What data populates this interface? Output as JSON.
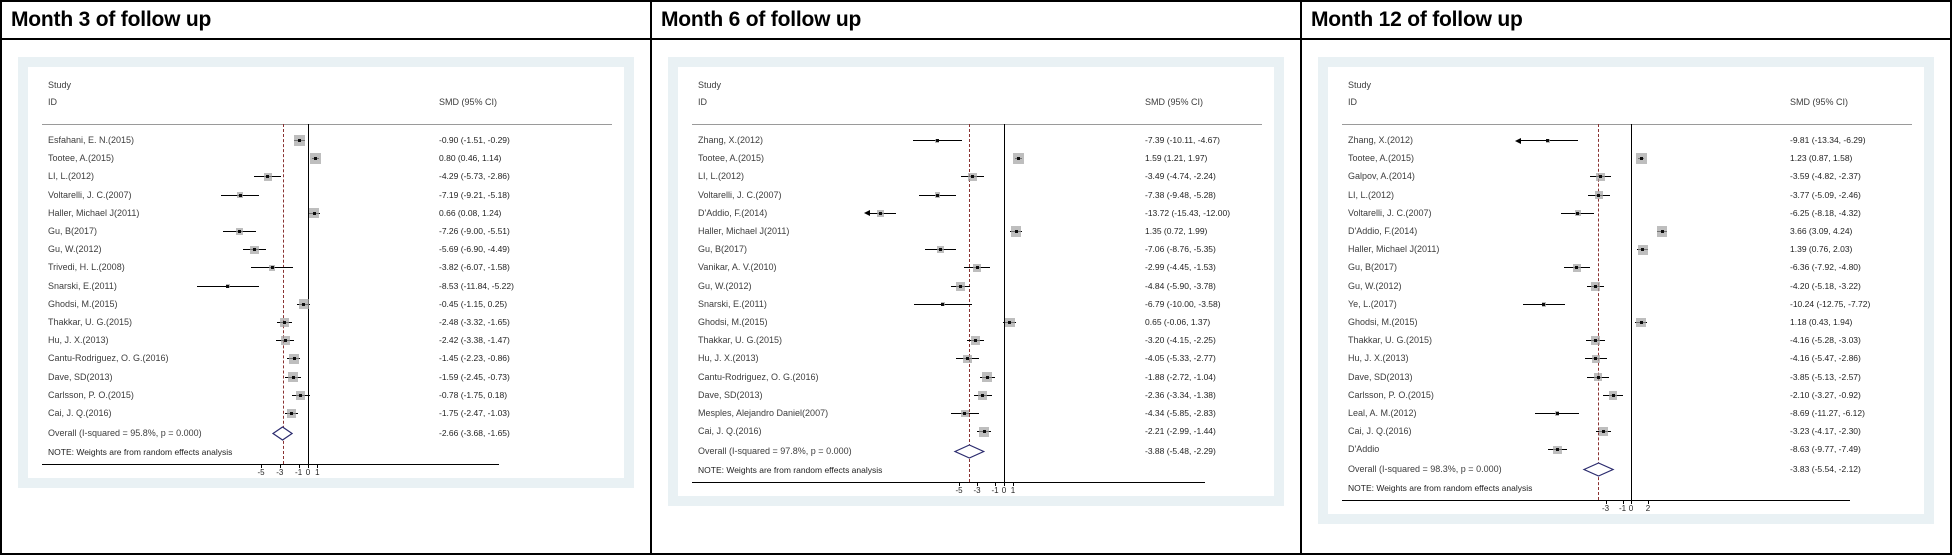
{
  "chart_data": [
    {
      "type": "forest",
      "title": "Month 3 of follow up",
      "col_headers": {
        "study": [
          "Study",
          "ID"
        ],
        "effect": "SMD (95% CI)"
      },
      "axis_ticks": [
        -5,
        -3,
        -1,
        0,
        1
      ],
      "xlim": [
        -12.4,
        1.8
      ],
      "null_line_x": 0,
      "studies": [
        {
          "label": "Esfahani, E. N.(2015)",
          "smd": -0.9,
          "lo": -1.51,
          "hi": -0.29,
          "ci_text": "-0.90 (-1.51, -0.29)"
        },
        {
          "label": "Tootee, A.(2015)",
          "smd": 0.8,
          "lo": 0.46,
          "hi": 1.14,
          "ci_text": "0.80 (0.46, 1.14)"
        },
        {
          "label": "LI, L.(2012)",
          "smd": -4.29,
          "lo": -5.73,
          "hi": -2.86,
          "ci_text": "-4.29 (-5.73, -2.86)"
        },
        {
          "label": "Voltarelli, J. C.(2007)",
          "smd": -7.19,
          "lo": -9.21,
          "hi": -5.18,
          "ci_text": "-7.19 (-9.21, -5.18)"
        },
        {
          "label": "Haller, Michael J(2011)",
          "smd": 0.66,
          "lo": 0.08,
          "hi": 1.24,
          "ci_text": "0.66 (0.08, 1.24)"
        },
        {
          "label": "Gu, B(2017)",
          "smd": -7.26,
          "lo": -9.0,
          "hi": -5.51,
          "ci_text": "-7.26 (-9.00, -5.51)"
        },
        {
          "label": "Gu, W.(2012)",
          "smd": -5.69,
          "lo": -6.9,
          "hi": -4.49,
          "ci_text": "-5.69 (-6.90, -4.49)"
        },
        {
          "label": "Trivedi, H. L.(2008)",
          "smd": -3.82,
          "lo": -6.07,
          "hi": -1.58,
          "ci_text": "-3.82 (-6.07, -1.58)"
        },
        {
          "label": "Snarski, E.(2011)",
          "smd": -8.53,
          "lo": -11.84,
          "hi": -5.22,
          "ci_text": "-8.53 (-11.84, -5.22)"
        },
        {
          "label": "Ghodsi, M.(2015)",
          "smd": -0.45,
          "lo": -1.15,
          "hi": 0.25,
          "ci_text": "-0.45 (-1.15, 0.25)"
        },
        {
          "label": "Thakkar, U. G.(2015)",
          "smd": -2.48,
          "lo": -3.32,
          "hi": -1.65,
          "ci_text": "-2.48 (-3.32, -1.65)"
        },
        {
          "label": "Hu, J. X.(2013)",
          "smd": -2.42,
          "lo": -3.38,
          "hi": -1.47,
          "ci_text": "-2.42 (-3.38, -1.47)"
        },
        {
          "label": "Cantu-Rodriguez, O. G.(2016)",
          "smd": -1.45,
          "lo": -2.23,
          "hi": -0.86,
          "ci_text": "-1.45 (-2.23, -0.86)"
        },
        {
          "label": "Dave, SD(2013)",
          "smd": -1.59,
          "lo": -2.45,
          "hi": -0.73,
          "ci_text": "-1.59 (-2.45, -0.73)"
        },
        {
          "label": "Carlsson, P. O.(2015)",
          "smd": -0.78,
          "lo": -1.75,
          "hi": 0.18,
          "ci_text": "-0.78 (-1.75, 0.18)"
        },
        {
          "label": "Cai, J. Q.(2016)",
          "smd": -1.75,
          "lo": -2.47,
          "hi": -1.03,
          "ci_text": "-1.75 (-2.47, -1.03)"
        }
      ],
      "overall": {
        "label": "Overall  (I-squared = 95.8%, p = 0.000)",
        "smd": -2.66,
        "lo": -3.68,
        "hi": -1.65,
        "ci_text": "-2.66 (-3.68, -1.65)"
      },
      "note": "NOTE: Weights are from random effects analysis"
    },
    {
      "type": "forest",
      "title": "Month 6 of follow up",
      "col_headers": {
        "study": [
          "Study",
          "ID"
        ],
        "effect": "SMD (95% CI)"
      },
      "axis_ticks": [
        -5,
        -3,
        -1,
        0,
        1
      ],
      "xlim": [
        -14.9,
        2.3
      ],
      "null_line_x": 0,
      "studies": [
        {
          "label": "Zhang, X.(2012)",
          "smd": -7.39,
          "lo": -10.11,
          "hi": -4.67,
          "ci_text": "-7.39 (-10.11, -4.67)"
        },
        {
          "label": "Tootee, A.(2015)",
          "smd": 1.59,
          "lo": 1.21,
          "hi": 1.97,
          "ci_text": "1.59 (1.21, 1.97)"
        },
        {
          "label": "LI, L.(2012)",
          "smd": -3.49,
          "lo": -4.74,
          "hi": -2.24,
          "ci_text": "-3.49 (-4.74, -2.24)"
        },
        {
          "label": "Voltarelli, J. C.(2007)",
          "smd": -7.38,
          "lo": -9.48,
          "hi": -5.28,
          "ci_text": "-7.38 (-9.48, -5.28)"
        },
        {
          "label": "D'Addio, F.(2014)",
          "smd": -13.72,
          "lo": -15.43,
          "hi": -12.0,
          "ci_text": "-13.72 (-15.43, -12.00)"
        },
        {
          "label": "Haller, Michael J(2011)",
          "smd": 1.35,
          "lo": 0.72,
          "hi": 1.99,
          "ci_text": "1.35 (0.72, 1.99)"
        },
        {
          "label": "Gu, B(2017)",
          "smd": -7.06,
          "lo": -8.76,
          "hi": -5.35,
          "ci_text": "-7.06 (-8.76, -5.35)"
        },
        {
          "label": "Vanikar, A. V.(2010)",
          "smd": -2.99,
          "lo": -4.45,
          "hi": -1.53,
          "ci_text": "-2.99 (-4.45, -1.53)"
        },
        {
          "label": "Gu, W.(2012)",
          "smd": -4.84,
          "lo": -5.9,
          "hi": -3.78,
          "ci_text": "-4.84 (-5.90, -3.78)"
        },
        {
          "label": "Snarski, E.(2011)",
          "smd": -6.79,
          "lo": -10.0,
          "hi": -3.58,
          "ci_text": "-6.79 (-10.00, -3.58)"
        },
        {
          "label": "Ghodsi, M.(2015)",
          "smd": 0.65,
          "lo": -0.06,
          "hi": 1.37,
          "ci_text": "0.65 (-0.06, 1.37)"
        },
        {
          "label": "Thakkar, U. G.(2015)",
          "smd": -3.2,
          "lo": -4.15,
          "hi": -2.25,
          "ci_text": "-3.20 (-4.15, -2.25)"
        },
        {
          "label": "Hu, J. X.(2013)",
          "smd": -4.05,
          "lo": -5.33,
          "hi": -2.77,
          "ci_text": "-4.05 (-5.33, -2.77)"
        },
        {
          "label": "Cantu-Rodriguez, O. G.(2016)",
          "smd": -1.88,
          "lo": -2.72,
          "hi": -1.04,
          "ci_text": "-1.88 (-2.72, -1.04)"
        },
        {
          "label": "Dave, SD(2013)",
          "smd": -2.36,
          "lo": -3.34,
          "hi": -1.38,
          "ci_text": "-2.36 (-3.34, -1.38)"
        },
        {
          "label": "Mesples, Alejandro Daniel(2007)",
          "smd": -4.34,
          "lo": -5.85,
          "hi": -2.83,
          "ci_text": "-4.34 (-5.85, -2.83)"
        },
        {
          "label": "Cai, J. Q.(2016)",
          "smd": -2.21,
          "lo": -2.99,
          "hi": -1.44,
          "ci_text": "-2.21 (-2.99, -1.44)"
        }
      ],
      "overall": {
        "label": "Overall  (I-squared = 97.8%, p = 0.000)",
        "smd": -3.88,
        "lo": -5.48,
        "hi": -2.29,
        "ci_text": "-3.88 (-5.48, -2.29)"
      },
      "note": "NOTE: Weights are from random effects analysis"
    },
    {
      "type": "forest",
      "title": "Month 12 of follow up",
      "col_headers": {
        "study": [
          "Study",
          "ID"
        ],
        "effect": "SMD (95% CI)"
      },
      "axis_ticks": [
        -3,
        -1,
        0,
        2
      ],
      "xlim": [
        -12.9,
        4.4
      ],
      "null_line_x": 0,
      "studies": [
        {
          "label": "Zhang, X.(2012)",
          "smd": -9.81,
          "lo": -13.34,
          "hi": -6.29,
          "ci_text": "-9.81 (-13.34, -6.29)"
        },
        {
          "label": "Tootee, A.(2015)",
          "smd": 1.23,
          "lo": 0.87,
          "hi": 1.58,
          "ci_text": "1.23 (0.87, 1.58)"
        },
        {
          "label": "Galpov, A.(2014)",
          "smd": -3.59,
          "lo": -4.82,
          "hi": -2.37,
          "ci_text": "-3.59 (-4.82, -2.37)"
        },
        {
          "label": "LI, L.(2012)",
          "smd": -3.77,
          "lo": -5.09,
          "hi": -2.46,
          "ci_text": "-3.77 (-5.09, -2.46)"
        },
        {
          "label": "Voltarelli, J. C.(2007)",
          "smd": -6.25,
          "lo": -8.18,
          "hi": -4.32,
          "ci_text": "-6.25 (-8.18, -4.32)"
        },
        {
          "label": "D'Addio, F.(2014)",
          "smd": 3.66,
          "lo": 3.09,
          "hi": 4.24,
          "ci_text": "3.66 (3.09, 4.24)"
        },
        {
          "label": "Haller, Michael J(2011)",
          "smd": 1.39,
          "lo": 0.76,
          "hi": 2.03,
          "ci_text": "1.39 (0.76, 2.03)"
        },
        {
          "label": "Gu, B(2017)",
          "smd": -6.36,
          "lo": -7.92,
          "hi": -4.8,
          "ci_text": "-6.36 (-7.92, -4.80)"
        },
        {
          "label": "Gu, W.(2012)",
          "smd": -4.2,
          "lo": -5.18,
          "hi": -3.22,
          "ci_text": "-4.20 (-5.18, -3.22)"
        },
        {
          "label": "Ye, L.(2017)",
          "smd": -10.24,
          "lo": -12.75,
          "hi": -7.72,
          "ci_text": "-10.24 (-12.75, -7.72)"
        },
        {
          "label": "Ghodsi, M.(2015)",
          "smd": 1.18,
          "lo": 0.43,
          "hi": 1.94,
          "ci_text": "1.18 (0.43, 1.94)"
        },
        {
          "label": "Thakkar, U. G.(2015)",
          "smd": -4.16,
          "lo": -5.28,
          "hi": -3.03,
          "ci_text": "-4.16 (-5.28, -3.03)"
        },
        {
          "label": "Hu, J. X.(2013)",
          "smd": -4.16,
          "lo": -5.47,
          "hi": -2.86,
          "ci_text": "-4.16 (-5.47, -2.86)"
        },
        {
          "label": "Dave, SD(2013)",
          "smd": -3.85,
          "lo": -5.13,
          "hi": -2.57,
          "ci_text": "-3.85 (-5.13, -2.57)"
        },
        {
          "label": "Carlsson, P. O.(2015)",
          "smd": -2.1,
          "lo": -3.27,
          "hi": -0.92,
          "ci_text": "-2.10 (-3.27, -0.92)"
        },
        {
          "label": "Leal, A. M.(2012)",
          "smd": -8.69,
          "lo": -11.27,
          "hi": -6.12,
          "ci_text": "-8.69 (-11.27, -6.12)"
        },
        {
          "label": "Cai, J. Q.(2016)",
          "smd": -3.23,
          "lo": -4.17,
          "hi": -2.3,
          "ci_text": "-3.23 (-4.17, -2.30)"
        },
        {
          "label": "D'Addio",
          "smd": -8.63,
          "lo": -9.77,
          "hi": -7.49,
          "ci_text": "-8.63 (-9.77, -7.49)"
        }
      ],
      "overall": {
        "label": "Overall  (I-squared = 98.3%, p = 0.000)",
        "smd": -3.83,
        "lo": -5.54,
        "hi": -2.12,
        "ci_text": "-3.83 (-5.54, -2.12)"
      },
      "note": "NOTE: Weights are from random effects analysis"
    }
  ]
}
